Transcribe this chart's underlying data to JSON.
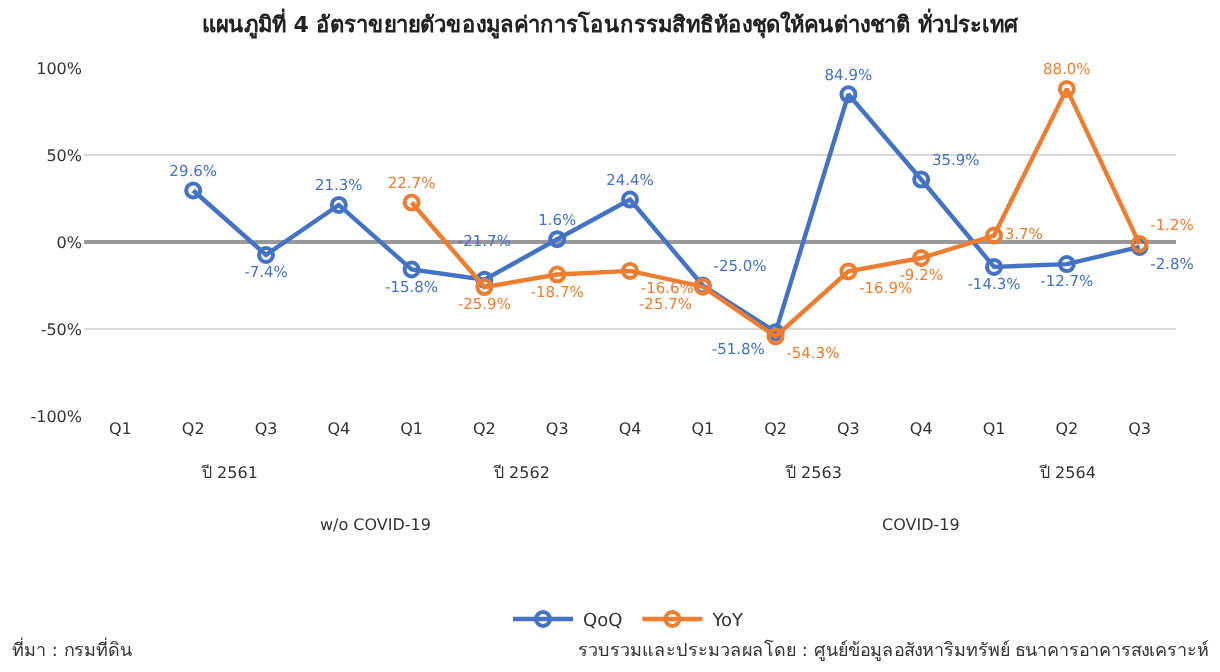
{
  "chart_data": {
    "type": "line",
    "title": "แผนภูมิที่ 4 อัตราขยายตัวของมูลค่าการโอนกรรมสิทธิห้องชุดให้คนต่างชาติ ทั่วประเทศ",
    "categories": [
      "Q1",
      "Q2",
      "Q3",
      "Q4",
      "Q1",
      "Q2",
      "Q3",
      "Q4",
      "Q1",
      "Q2",
      "Q3",
      "Q4",
      "Q1",
      "Q2",
      "Q3"
    ],
    "series": [
      {
        "name": "QoQ",
        "color": "#4472c4",
        "values": [
          null,
          29.6,
          -7.4,
          21.3,
          -15.8,
          -21.7,
          1.6,
          24.4,
          -25.0,
          -51.8,
          84.9,
          35.9,
          -14.3,
          -12.7,
          -2.8
        ],
        "value_labels": [
          null,
          "29.6%",
          "-7.4%",
          "21.3%",
          "-15.8%",
          "-21.7%",
          "1.6%",
          "24.4%",
          "-25.0%",
          "-51.8%",
          "84.9%",
          "35.9%",
          "-14.3%",
          "-12.7%",
          "-2.8%"
        ]
      },
      {
        "name": "YoY",
        "color": "#ed7d31",
        "values": [
          null,
          null,
          null,
          null,
          22.7,
          -25.9,
          -18.7,
          -16.6,
          -25.7,
          -54.3,
          -16.9,
          -9.2,
          3.7,
          88.0,
          -1.2
        ],
        "value_labels": [
          null,
          null,
          null,
          null,
          "22.7%",
          "-25.9%",
          "-18.7%",
          "-16.6%",
          "-25.7%",
          "-54.3%",
          "-16.9%",
          "-9.2%",
          "3.7%",
          "88.0%",
          "-1.2%"
        ]
      }
    ],
    "ylim": [
      -100,
      100
    ],
    "yticks": [
      {
        "value": -100,
        "label": "-100%"
      },
      {
        "value": -50,
        "label": "-50%"
      },
      {
        "value": 0,
        "label": "0%"
      },
      {
        "value": 50,
        "label": "50%"
      },
      {
        "value": 100,
        "label": "100%"
      }
    ],
    "grid": "y",
    "legend": "bottom",
    "marker": "circle",
    "line_style": "solid",
    "annotations": [
      "ปี 2561",
      "ปี 2562",
      "ปี 2563",
      "ปี 2564",
      "w/o COVID-19",
      "COVID-19",
      "ที่มา : กรมที่ดิน",
      "รวบรวมและประมวลผลโดย : ศูนย์ข้อมูลอสังหาริมทรัพย์ ธนาคารอาคารสงเคราะห์"
    ]
  }
}
